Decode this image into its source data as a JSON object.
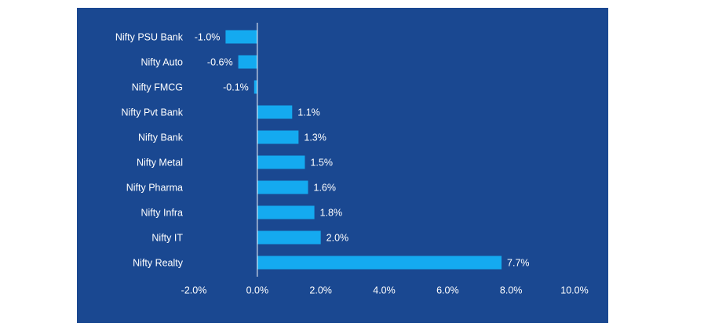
{
  "chart_data": {
    "type": "bar",
    "orientation": "horizontal",
    "title": "",
    "xlabel": "",
    "ylabel": "",
    "categories": [
      "Nifty PSU Bank",
      "Nifty Auto",
      "Nifty FMCG",
      "Nifty Pvt Bank",
      "Nifty Bank",
      "Nifty Metal",
      "Nifty Pharma",
      "Nifty Infra",
      "Nifty IT",
      "Nifty Realty"
    ],
    "values": [
      -1.0,
      -0.6,
      -0.1,
      1.1,
      1.3,
      1.5,
      1.6,
      1.8,
      2.0,
      7.7
    ],
    "value_labels": [
      "-1.0%",
      "-0.6%",
      "-0.1%",
      "1.1%",
      "1.3%",
      "1.5%",
      "1.6%",
      "1.8%",
      "2.0%",
      "7.7%"
    ],
    "xlim": [
      -2.0,
      10.0
    ],
    "x_ticks": [
      -2.0,
      0.0,
      2.0,
      4.0,
      6.0,
      8.0,
      10.0
    ],
    "x_tick_labels": [
      "-2.0%",
      "0.0%",
      "2.0%",
      "4.0%",
      "6.0%",
      "8.0%",
      "10.0%"
    ],
    "grid": false,
    "legend": "none",
    "colors": {
      "background": "#1a4891",
      "bar": "#14aaf0",
      "text": "#ffffff",
      "axis": "#ffffff"
    }
  }
}
